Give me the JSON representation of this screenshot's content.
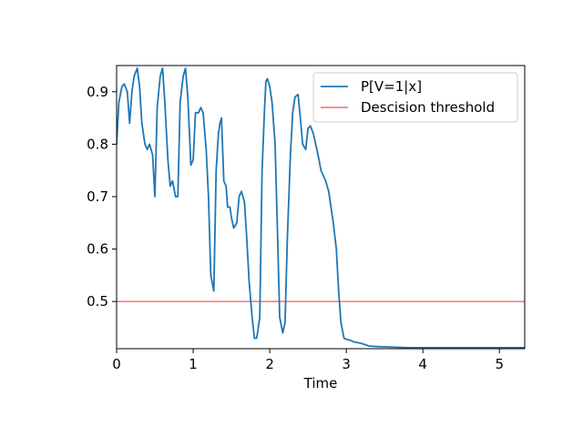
{
  "chart_data": {
    "type": "line",
    "title": "",
    "xlabel": "Time",
    "ylabel": "",
    "xlim": [
      0,
      5.33
    ],
    "ylim": [
      0.41,
      0.95
    ],
    "xticks": [
      0,
      1,
      2,
      3,
      4,
      5
    ],
    "yticks": [
      0.5,
      0.6,
      0.7,
      0.8,
      0.9
    ],
    "legend_position": "top-right",
    "grid": false,
    "series": [
      {
        "name": "P[V=1|x]",
        "color": "#1f77b4",
        "x": [
          0.0,
          0.03,
          0.07,
          0.1,
          0.14,
          0.17,
          0.2,
          0.23,
          0.27,
          0.3,
          0.33,
          0.37,
          0.4,
          0.43,
          0.47,
          0.5,
          0.53,
          0.57,
          0.6,
          0.63,
          0.67,
          0.7,
          0.73,
          0.77,
          0.8,
          0.83,
          0.87,
          0.9,
          0.93,
          0.97,
          1.0,
          1.03,
          1.07,
          1.1,
          1.13,
          1.17,
          1.2,
          1.23,
          1.27,
          1.3,
          1.33,
          1.35,
          1.37,
          1.4,
          1.43,
          1.45,
          1.48,
          1.5,
          1.53,
          1.57,
          1.6,
          1.63,
          1.67,
          1.7,
          1.73,
          1.77,
          1.8,
          1.83,
          1.87,
          1.9,
          1.93,
          1.95,
          1.97,
          2.0,
          2.03,
          2.07,
          2.1,
          2.13,
          2.17,
          2.2,
          2.23,
          2.27,
          2.3,
          2.33,
          2.37,
          2.4,
          2.43,
          2.47,
          2.5,
          2.53,
          2.57,
          2.6,
          2.63,
          2.67,
          2.7,
          2.73,
          2.77,
          2.8,
          2.83,
          2.87,
          2.9,
          2.93,
          2.97,
          3.0,
          3.03,
          3.07,
          3.1,
          3.2,
          3.3,
          3.4,
          3.6,
          3.8,
          4.0,
          4.5,
          5.0,
          5.33
        ],
        "y": [
          0.8,
          0.88,
          0.91,
          0.915,
          0.9,
          0.84,
          0.9,
          0.93,
          0.945,
          0.91,
          0.84,
          0.8,
          0.79,
          0.8,
          0.78,
          0.7,
          0.87,
          0.93,
          0.945,
          0.88,
          0.77,
          0.72,
          0.73,
          0.7,
          0.7,
          0.88,
          0.93,
          0.945,
          0.89,
          0.76,
          0.77,
          0.86,
          0.86,
          0.87,
          0.86,
          0.79,
          0.7,
          0.55,
          0.52,
          0.75,
          0.82,
          0.84,
          0.85,
          0.73,
          0.72,
          0.68,
          0.68,
          0.66,
          0.64,
          0.65,
          0.7,
          0.71,
          0.69,
          0.62,
          0.54,
          0.47,
          0.43,
          0.43,
          0.47,
          0.75,
          0.86,
          0.92,
          0.925,
          0.91,
          0.88,
          0.8,
          0.64,
          0.47,
          0.44,
          0.46,
          0.62,
          0.78,
          0.86,
          0.89,
          0.895,
          0.85,
          0.8,
          0.79,
          0.83,
          0.835,
          0.82,
          0.8,
          0.78,
          0.75,
          0.74,
          0.73,
          0.71,
          0.68,
          0.65,
          0.6,
          0.52,
          0.46,
          0.43,
          0.428,
          0.427,
          0.425,
          0.423,
          0.42,
          0.415,
          0.414,
          0.413,
          0.412,
          0.412,
          0.412,
          0.412,
          0.412
        ]
      },
      {
        "name": "Descision threshold",
        "color": "#f08080",
        "x": [
          0,
          5.33
        ],
        "y": [
          0.5,
          0.5
        ]
      }
    ]
  }
}
